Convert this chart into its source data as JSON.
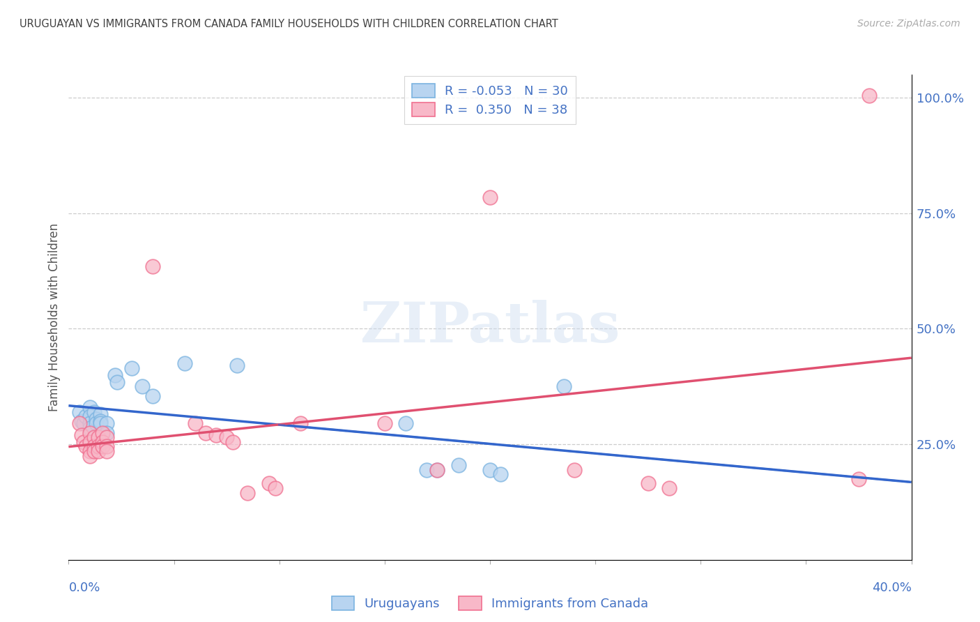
{
  "title": "URUGUAYAN VS IMMIGRANTS FROM CANADA FAMILY HOUSEHOLDS WITH CHILDREN CORRELATION CHART",
  "source": "Source: ZipAtlas.com",
  "ylabel": "Family Households with Children",
  "legend_blue_r": "-0.053",
  "legend_blue_n": "30",
  "legend_pink_r": "0.350",
  "legend_pink_n": "38",
  "xmin": 0.0,
  "xmax": 0.4,
  "ymin": 0.0,
  "ymax": 1.05,
  "blue_color": "#7ab3e0",
  "blue_face": "#b8d4f0",
  "pink_color": "#f07090",
  "pink_face": "#f8b8c8",
  "blue_line_color": "#3366cc",
  "pink_line_color": "#e05070",
  "blue_scatter": [
    [
      0.005,
      0.32
    ],
    [
      0.006,
      0.3
    ],
    [
      0.007,
      0.295
    ],
    [
      0.008,
      0.31
    ],
    [
      0.01,
      0.33
    ],
    [
      0.01,
      0.31
    ],
    [
      0.01,
      0.295
    ],
    [
      0.01,
      0.285
    ],
    [
      0.012,
      0.32
    ],
    [
      0.013,
      0.305
    ],
    [
      0.013,
      0.295
    ],
    [
      0.015,
      0.315
    ],
    [
      0.015,
      0.3
    ],
    [
      0.015,
      0.295
    ],
    [
      0.018,
      0.295
    ],
    [
      0.018,
      0.275
    ],
    [
      0.022,
      0.4
    ],
    [
      0.023,
      0.385
    ],
    [
      0.03,
      0.415
    ],
    [
      0.035,
      0.375
    ],
    [
      0.04,
      0.355
    ],
    [
      0.055,
      0.425
    ],
    [
      0.08,
      0.42
    ],
    [
      0.16,
      0.295
    ],
    [
      0.17,
      0.195
    ],
    [
      0.175,
      0.195
    ],
    [
      0.185,
      0.205
    ],
    [
      0.2,
      0.195
    ],
    [
      0.205,
      0.185
    ],
    [
      0.235,
      0.375
    ]
  ],
  "pink_scatter": [
    [
      0.005,
      0.295
    ],
    [
      0.006,
      0.27
    ],
    [
      0.007,
      0.255
    ],
    [
      0.008,
      0.245
    ],
    [
      0.01,
      0.275
    ],
    [
      0.01,
      0.255
    ],
    [
      0.01,
      0.235
    ],
    [
      0.01,
      0.225
    ],
    [
      0.012,
      0.265
    ],
    [
      0.012,
      0.245
    ],
    [
      0.012,
      0.235
    ],
    [
      0.014,
      0.265
    ],
    [
      0.014,
      0.245
    ],
    [
      0.014,
      0.235
    ],
    [
      0.016,
      0.275
    ],
    [
      0.016,
      0.255
    ],
    [
      0.016,
      0.245
    ],
    [
      0.018,
      0.265
    ],
    [
      0.018,
      0.245
    ],
    [
      0.018,
      0.235
    ],
    [
      0.04,
      0.635
    ],
    [
      0.06,
      0.295
    ],
    [
      0.065,
      0.275
    ],
    [
      0.07,
      0.27
    ],
    [
      0.075,
      0.265
    ],
    [
      0.078,
      0.255
    ],
    [
      0.085,
      0.145
    ],
    [
      0.095,
      0.165
    ],
    [
      0.098,
      0.155
    ],
    [
      0.11,
      0.295
    ],
    [
      0.15,
      0.295
    ],
    [
      0.175,
      0.195
    ],
    [
      0.2,
      0.785
    ],
    [
      0.24,
      0.195
    ],
    [
      0.275,
      0.165
    ],
    [
      0.285,
      0.155
    ],
    [
      0.375,
      0.175
    ],
    [
      0.38,
      1.005
    ]
  ],
  "background_color": "#ffffff",
  "grid_color": "#cccccc",
  "title_color": "#404040",
  "axis_label_color": "#4472c4",
  "right_ytick_labels": [
    "25.0%",
    "50.0%",
    "75.0%",
    "100.0%"
  ],
  "right_ytick_positions": [
    0.25,
    0.5,
    0.75,
    1.0
  ],
  "watermark_text": "ZIPatlas",
  "legend_label_blue": "Uruguayans",
  "legend_label_pink": "Immigrants from Canada"
}
